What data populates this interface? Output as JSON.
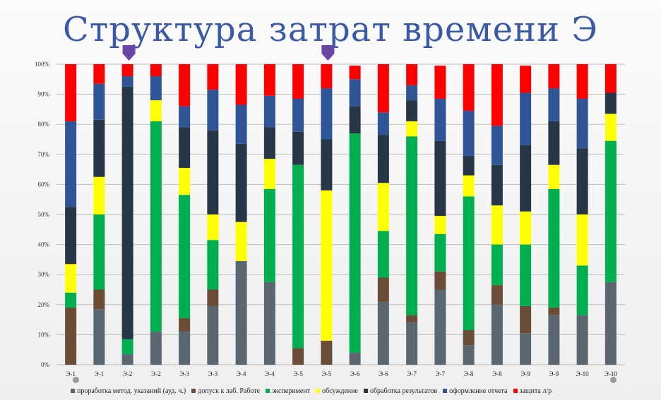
{
  "title": "Структура затрат времени Э",
  "chart_data": {
    "type": "bar",
    "stacked": true,
    "percent": true,
    "title": "Структура затрат времени Э",
    "xlabel": "",
    "ylabel": "",
    "ylim": [
      0,
      100
    ],
    "y_ticks": [
      "0%",
      "10%",
      "20%",
      "30%",
      "40%",
      "50%",
      "60%",
      "70%",
      "80%",
      "90%",
      "100%"
    ],
    "grid": true,
    "legend_position": "bottom",
    "categories": [
      "Э-1",
      "Э-1",
      "Э-2",
      "Э-2",
      "Э-3",
      "Э-3",
      "Э-4",
      "Э-4",
      "Э-5",
      "Э-5",
      "Э-6",
      "Э-6",
      "Э-7",
      "Э-7",
      "Э-8",
      "Э-8",
      "Э-9",
      "Э-9",
      "Э-10",
      "Э-10"
    ],
    "highlighted_categories": [
      2,
      9
    ],
    "series": [
      {
        "name": "проработка метод. указаний (ауд. ч.)",
        "color": "#5b6770",
        "values": [
          0,
          18.5,
          3.5,
          11,
          11,
          19.5,
          34.5,
          27.5,
          0,
          0,
          4,
          21,
          14,
          25,
          6.5,
          20,
          10.5,
          16.5,
          16.5,
          27.5
        ]
      },
      {
        "name": "допуск к лаб. Работе",
        "color": "#6b4c36",
        "values": [
          19,
          6.5,
          0,
          0,
          4.5,
          5.5,
          0,
          0,
          5.5,
          8,
          0,
          8,
          2.5,
          6,
          5,
          6.5,
          9,
          2.5,
          0,
          0
        ]
      },
      {
        "name": "эксперимент",
        "color": "#00b050",
        "values": [
          5,
          25,
          5,
          70,
          41,
          16.5,
          0,
          31,
          61,
          0,
          73,
          15.5,
          59.5,
          12.5,
          44.5,
          13.5,
          20.5,
          39.5,
          16.5,
          47
        ]
      },
      {
        "name": "обсуждение",
        "color": "#ffff00",
        "values": [
          9.5,
          12.5,
          0,
          7,
          9,
          8.5,
          13,
          10,
          0,
          50,
          0,
          16,
          5,
          6,
          7,
          13,
          11,
          8,
          17,
          9
        ]
      },
      {
        "name": "обработка результатов",
        "color": "#283747",
        "values": [
          19,
          19,
          84,
          0,
          13.5,
          28,
          26,
          10.5,
          11,
          17,
          9,
          16,
          7,
          25,
          6.5,
          13.5,
          22,
          14.5,
          22,
          7
        ]
      },
      {
        "name": "оформление отчета",
        "color": "#2f5597",
        "values": [
          28.5,
          12,
          3.5,
          8,
          7,
          13.5,
          13,
          10.5,
          11,
          17,
          9,
          7.5,
          5,
          14,
          15,
          13,
          17.5,
          11,
          16.5,
          0
        ]
      },
      {
        "name": "защита л/р",
        "color": "#ff0000",
        "values": [
          19,
          6.5,
          4,
          4,
          14,
          8.5,
          13.5,
          10.5,
          11.5,
          8,
          4.5,
          16,
          7,
          11,
          15.5,
          20.5,
          9,
          8,
          11.5,
          9.5
        ]
      }
    ]
  }
}
